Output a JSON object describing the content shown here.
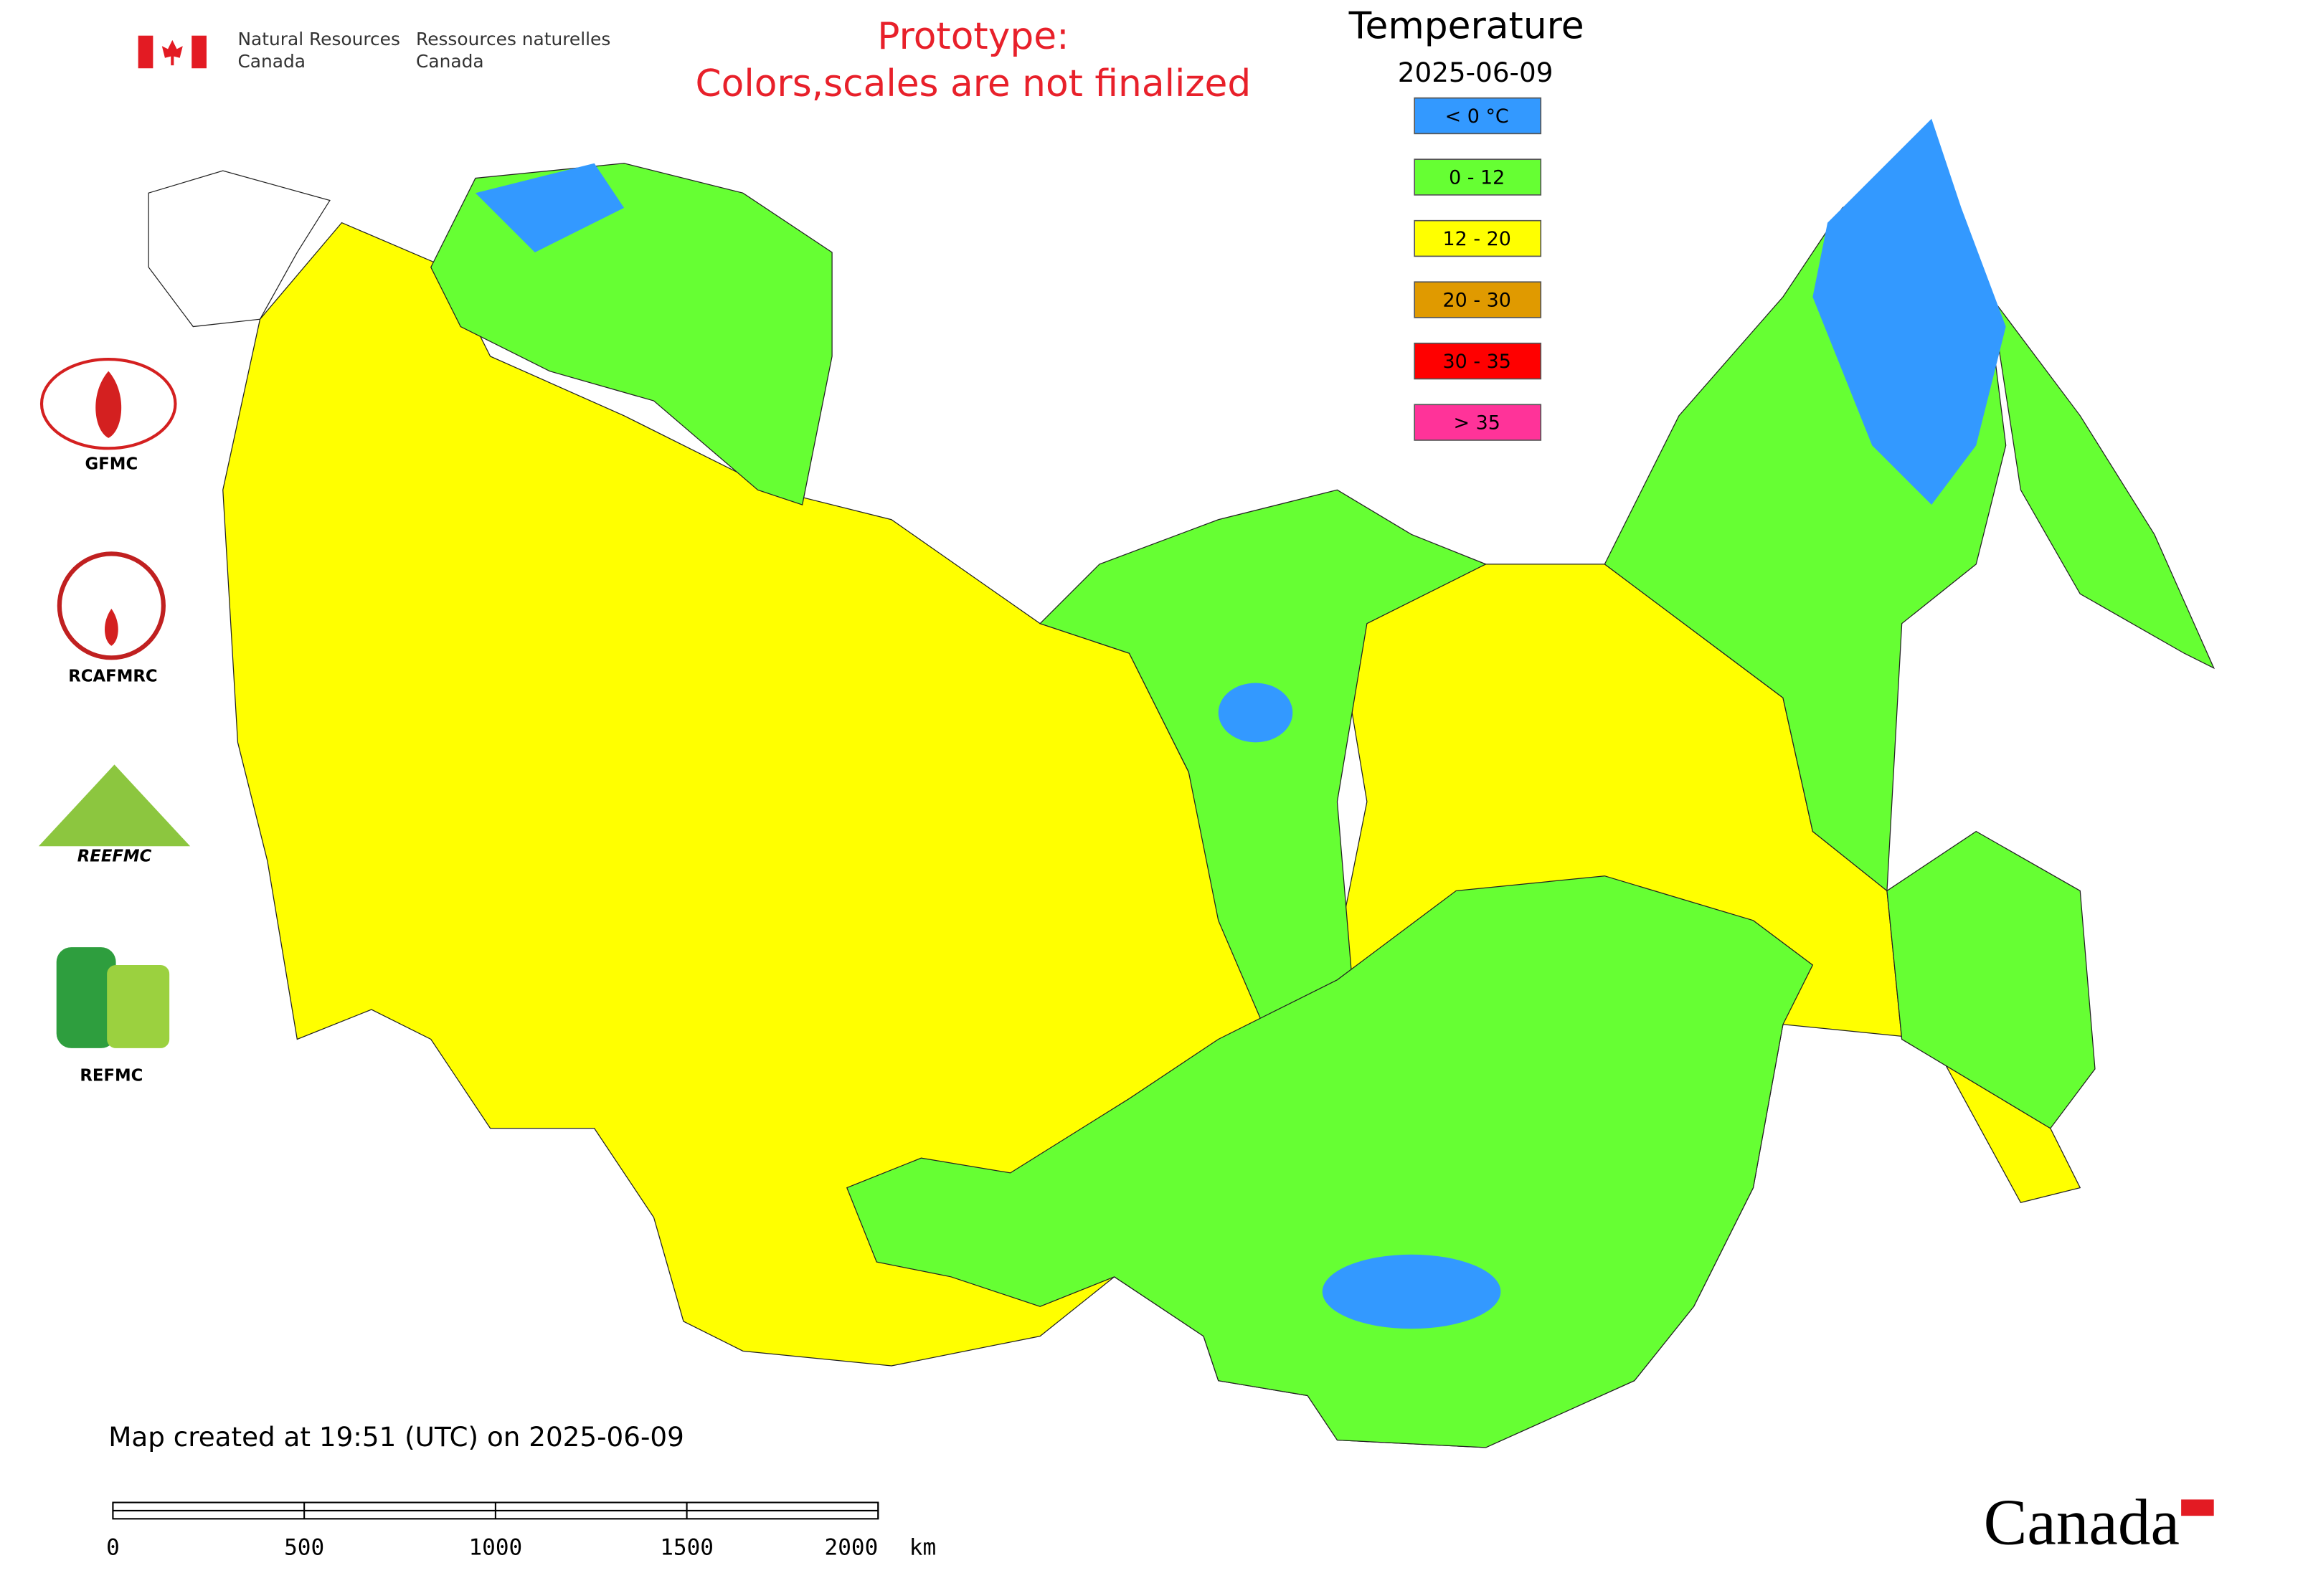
{
  "header": {
    "dept_en": [
      "Natural Resources",
      "Canada"
    ],
    "dept_fr": [
      "Ressources naturelles",
      "Canada"
    ],
    "prototype": [
      "Prototype:",
      "Colors,scales are not finalized"
    ],
    "wordmark": "Canada"
  },
  "legend": {
    "title": "Temperature",
    "date": "2025-06-09",
    "items": [
      {
        "label": "< 0 °C",
        "color": "#3399ff"
      },
      {
        "label": "0 - 12",
        "color": "#66ff33"
      },
      {
        "label": "12 - 20",
        "color": "#ffff00"
      },
      {
        "label": "20 - 30",
        "color": "#e09a00"
      },
      {
        "label": "30 - 35",
        "color": "#ff0000"
      },
      {
        "label": "> 35",
        "color": "#ff3399"
      }
    ]
  },
  "logos": [
    "GFMC",
    "RCAFMRC",
    "REEFMC",
    "REFMC"
  ],
  "footer": {
    "created": "Map created at 19:51 (UTC) on 2025-06-09"
  },
  "scale_bar": {
    "ticks": [
      0,
      500,
      1000,
      1500,
      2000
    ],
    "unit": "km"
  }
}
